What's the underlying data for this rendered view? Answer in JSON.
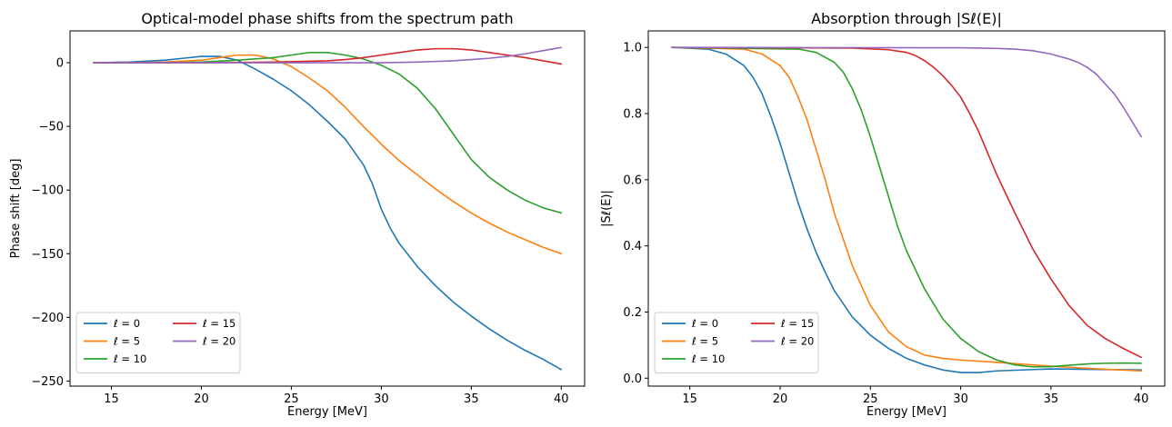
{
  "chart_data": [
    {
      "type": "line",
      "title": "Optical-model phase shifts from the spectrum path",
      "xlabel": "Energy [MeV]",
      "ylabel": "Phase shift [deg]",
      "xlim": [
        12.7,
        41.3
      ],
      "ylim": [
        -254,
        25
      ],
      "xticks": [
        15,
        20,
        25,
        30,
        35,
        40
      ],
      "yticks": [
        0,
        -50,
        -100,
        -150,
        -200,
        -250
      ],
      "ytick_labels": [
        "0",
        "−50",
        "−100",
        "−150",
        "−200",
        "−250"
      ],
      "grid": false,
      "legend_position": "lower-left",
      "legend_columns": 2,
      "series": [
        {
          "name": "ℓ = 0",
          "color": "#1f77b4",
          "x": [
            14,
            16,
            18,
            19,
            20,
            21,
            22,
            23,
            24,
            25,
            26,
            27,
            28,
            29,
            29.5,
            30,
            30.5,
            31,
            32,
            33,
            34,
            35,
            36,
            37,
            38,
            39,
            40
          ],
          "y": [
            0,
            0.5,
            2,
            3.5,
            5,
            5,
            2,
            -5,
            -13,
            -22,
            -33,
            -46,
            -60,
            -80,
            -95,
            -115,
            -130,
            -142,
            -160,
            -175,
            -188,
            -199,
            -209,
            -218,
            -226,
            -233,
            -241
          ]
        },
        {
          "name": "ℓ = 5",
          "color": "#ff7f0e",
          "x": [
            14,
            16,
            18,
            20,
            21,
            22,
            23,
            24,
            25,
            26,
            27,
            28,
            29,
            30,
            31,
            32,
            33,
            34,
            35,
            36,
            37,
            38,
            39,
            40
          ],
          "y": [
            0,
            0,
            0.5,
            2,
            4,
            6,
            6,
            3,
            -3,
            -12,
            -22,
            -35,
            -50,
            -64,
            -77,
            -88,
            -99,
            -109,
            -118,
            -126,
            -133,
            -139,
            -145,
            -150
          ]
        },
        {
          "name": "ℓ = 10",
          "color": "#2ca02c",
          "x": [
            14,
            18,
            20,
            22,
            24,
            25,
            26,
            27,
            28,
            29,
            30,
            31,
            32,
            33,
            34,
            35,
            36,
            37,
            38,
            39,
            40
          ],
          "y": [
            0,
            0,
            0.5,
            2,
            4,
            6,
            8,
            8,
            6,
            3,
            -2,
            -9,
            -20,
            -36,
            -56,
            -76,
            -90,
            -100,
            -108,
            -114,
            -118
          ]
        },
        {
          "name": "ℓ = 15",
          "color": "#d62728",
          "x": [
            14,
            20,
            24,
            27,
            28,
            29,
            30,
            31,
            32,
            33,
            34,
            35,
            36,
            37,
            38,
            39,
            40
          ],
          "y": [
            0,
            0,
            0.5,
            1.5,
            2.5,
            4,
            6,
            8,
            10,
            11,
            11,
            10,
            8,
            6,
            4,
            1.5,
            -1
          ]
        },
        {
          "name": "ℓ = 20",
          "color": "#9467bd",
          "x": [
            14,
            25,
            30,
            32,
            33,
            34,
            35,
            36,
            37,
            38,
            39,
            40
          ],
          "y": [
            0,
            0,
            0,
            0.5,
            1,
            1.5,
            2.5,
            3.5,
            5,
            7,
            9.5,
            12
          ]
        }
      ]
    },
    {
      "type": "line",
      "title": "Absorption through |Sℓ(E)|",
      "xlabel": "Energy [MeV]",
      "ylabel": "|Sℓ(E)|",
      "xlim": [
        12.7,
        41.3
      ],
      "ylim": [
        -0.024,
        1.05
      ],
      "xticks": [
        15,
        20,
        25,
        30,
        35,
        40
      ],
      "yticks": [
        0.0,
        0.2,
        0.4,
        0.6,
        0.8,
        1.0
      ],
      "ytick_labels": [
        "0.0",
        "0.2",
        "0.4",
        "0.6",
        "0.8",
        "1.0"
      ],
      "grid": false,
      "legend_position": "lower-left",
      "legend_columns": 2,
      "series": [
        {
          "name": "ℓ = 0",
          "color": "#1f77b4",
          "x": [
            14,
            16,
            17,
            18,
            18.5,
            19,
            19.5,
            20,
            20.5,
            21,
            21.5,
            22,
            22.5,
            23,
            24,
            25,
            26,
            27,
            28,
            29,
            30,
            31,
            32,
            35,
            40
          ],
          "y": [
            1.0,
            0.995,
            0.98,
            0.945,
            0.91,
            0.86,
            0.79,
            0.71,
            0.62,
            0.53,
            0.45,
            0.38,
            0.32,
            0.265,
            0.185,
            0.13,
            0.09,
            0.06,
            0.04,
            0.025,
            0.017,
            0.017,
            0.022,
            0.028,
            0.025
          ]
        },
        {
          "name": "ℓ = 5",
          "color": "#ff7f0e",
          "x": [
            14,
            18,
            19,
            20,
            20.5,
            21,
            21.5,
            22,
            22.5,
            23,
            23.5,
            24,
            25,
            26,
            27,
            28,
            29,
            30,
            32,
            34,
            36,
            38,
            40
          ],
          "y": [
            1.0,
            0.995,
            0.98,
            0.945,
            0.91,
            0.85,
            0.78,
            0.69,
            0.6,
            0.5,
            0.42,
            0.34,
            0.22,
            0.14,
            0.095,
            0.07,
            0.06,
            0.055,
            0.048,
            0.04,
            0.033,
            0.027,
            0.022
          ]
        },
        {
          "name": "ℓ = 10",
          "color": "#2ca02c",
          "x": [
            14,
            21,
            22,
            23,
            23.5,
            24,
            24.5,
            25,
            25.5,
            26,
            26.5,
            27,
            28,
            29,
            30,
            31,
            32,
            33,
            34,
            35,
            36,
            37,
            38,
            39,
            40
          ],
          "y": [
            1.0,
            0.995,
            0.985,
            0.955,
            0.925,
            0.875,
            0.81,
            0.73,
            0.64,
            0.55,
            0.46,
            0.385,
            0.27,
            0.18,
            0.12,
            0.08,
            0.055,
            0.04,
            0.034,
            0.035,
            0.039,
            0.043,
            0.045,
            0.046,
            0.045
          ]
        },
        {
          "name": "ℓ = 15",
          "color": "#d62728",
          "x": [
            14,
            24,
            26,
            27,
            27.5,
            28,
            28.5,
            29,
            29.5,
            30,
            30.5,
            31,
            31.5,
            32,
            33,
            34,
            35,
            36,
            37,
            38,
            39,
            40
          ],
          "y": [
            1.0,
            0.998,
            0.993,
            0.985,
            0.975,
            0.96,
            0.94,
            0.915,
            0.885,
            0.85,
            0.8,
            0.745,
            0.68,
            0.615,
            0.5,
            0.39,
            0.3,
            0.22,
            0.16,
            0.12,
            0.09,
            0.063
          ]
        },
        {
          "name": "ℓ = 20",
          "color": "#9467bd",
          "x": [
            14,
            30,
            32,
            33,
            34,
            35,
            36,
            36.5,
            37,
            37.5,
            38,
            38.5,
            39,
            39.5,
            40
          ],
          "y": [
            1.0,
            0.999,
            0.997,
            0.995,
            0.99,
            0.98,
            0.965,
            0.955,
            0.94,
            0.92,
            0.89,
            0.86,
            0.82,
            0.775,
            0.73
          ]
        }
      ]
    }
  ]
}
